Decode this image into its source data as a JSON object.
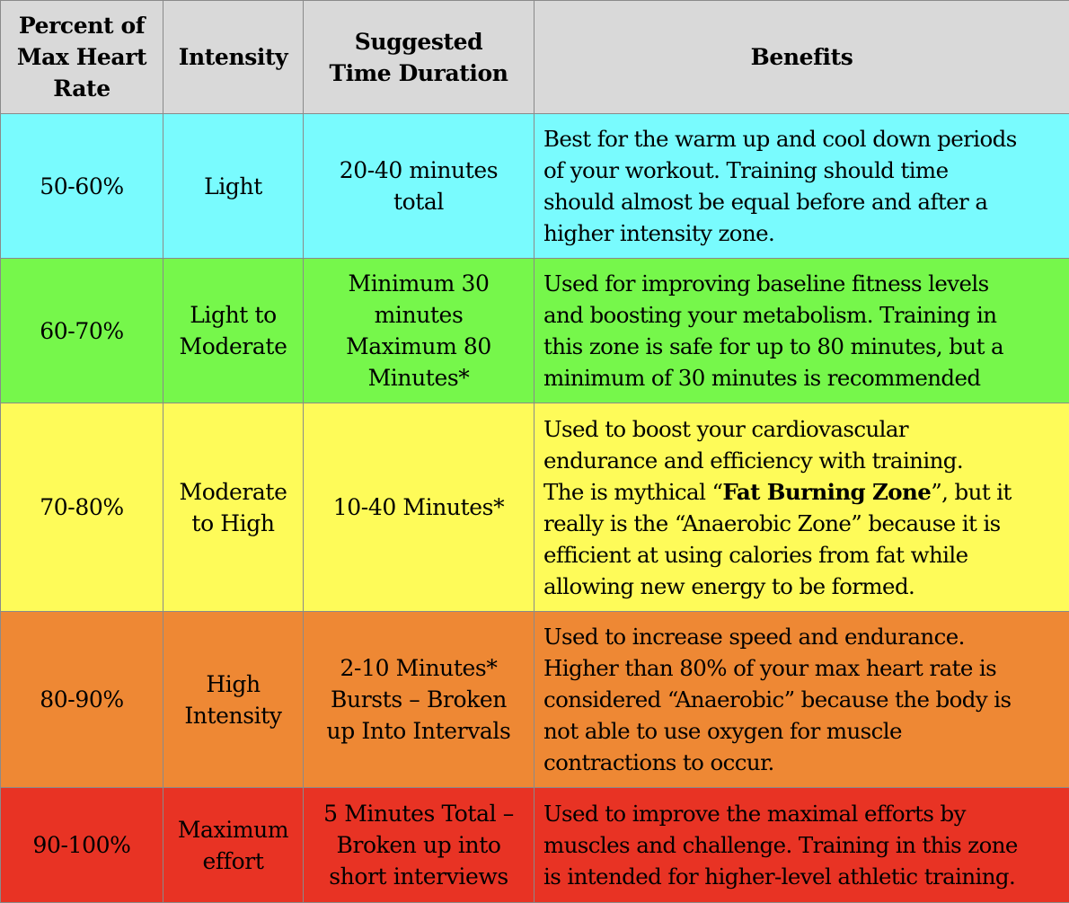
{
  "headers": [
    [
      "Percent of",
      "Max Heart",
      "Rate"
    ],
    [
      "Intensity"
    ],
    [
      "Suggested",
      "Time Duration"
    ],
    [
      "Benefits"
    ]
  ],
  "rows": [
    {
      "color": "#79fbfe",
      "percent": [
        "50-60%"
      ],
      "intensity": [
        "Light"
      ],
      "duration": [
        "20-40 minutes",
        "total"
      ],
      "benefits": [
        [
          {
            "t": "Best for the warm up and cool down periods"
          }
        ],
        [
          {
            "t": "of your workout. Training should time"
          }
        ],
        [
          {
            "t": "should almost be equal before and after a"
          }
        ],
        [
          {
            "t": "higher intensity zone."
          }
        ]
      ]
    },
    {
      "color": "#76f74b",
      "percent": [
        "60-70%"
      ],
      "intensity": [
        "Light to",
        "Moderate"
      ],
      "duration": [
        "Minimum 30",
        "minutes",
        "Maximum 80",
        "Minutes*"
      ],
      "benefits": [
        [
          {
            "t": "Used for improving baseline fitness levels"
          }
        ],
        [
          {
            "t": "and boosting your metabolism. Training in"
          }
        ],
        [
          {
            "t": "this zone is safe for up to 80 minutes, but a"
          }
        ],
        [
          {
            "t": "minimum of 30 minutes is recommended"
          }
        ]
      ]
    },
    {
      "color": "#fefb59",
      "percent": [
        "70-80%"
      ],
      "intensity": [
        "Moderate",
        "to High"
      ],
      "duration": [
        "10-40 Minutes*"
      ],
      "benefits": [
        [
          {
            "t": "Used to boost your cardiovascular"
          }
        ],
        [
          {
            "t": "endurance and efficiency with training."
          }
        ],
        [
          {
            "t": "The is mythical “"
          },
          {
            "t": "Fat Burning Zone",
            "b": true
          },
          {
            "t": "”, but it"
          }
        ],
        [
          {
            "t": "really is the “Anaerobic Zone” because it is"
          }
        ],
        [
          {
            "t": "efficient at using calories from fat while"
          }
        ],
        [
          {
            "t": "allowing new energy to be formed."
          }
        ]
      ]
    },
    {
      "color": "#ee8834",
      "percent": [
        "80-90%"
      ],
      "intensity": [
        "High",
        "Intensity"
      ],
      "duration": [
        "2-10 Minutes*",
        "Bursts – Broken",
        "up Into Intervals"
      ],
      "benefits": [
        [
          {
            "t": "Used to increase speed and endurance."
          }
        ],
        [
          {
            "t": "Higher than 80% of your max heart rate is"
          }
        ],
        [
          {
            "t": "considered “Anaerobic” because the body is"
          }
        ],
        [
          {
            "t": "not able to use oxygen for muscle"
          }
        ],
        [
          {
            "t": "contractions to occur."
          }
        ]
      ]
    },
    {
      "color": "#e83324",
      "percent": [
        "90-100%"
      ],
      "intensity": [
        "Maximum",
        "effort"
      ],
      "duration": [
        "5 Minutes Total –",
        "Broken up into",
        "short interviews"
      ],
      "benefits": [
        [
          {
            "t": "Used to improve the maximal efforts by"
          }
        ],
        [
          {
            "t": "muscles and challenge. Training in this zone"
          }
        ],
        [
          {
            "t": "is intended for higher-level athletic training."
          }
        ]
      ]
    }
  ]
}
